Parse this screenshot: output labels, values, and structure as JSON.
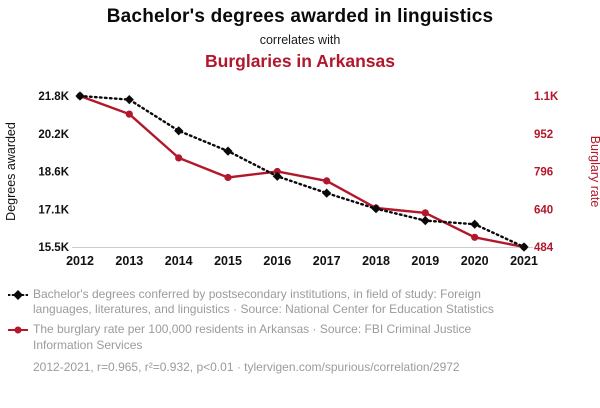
{
  "header": {
    "title": "Bachelor's degrees awarded in linguistics",
    "subtitle": "correlates with",
    "correlate": "Burglaries in Arkansas"
  },
  "chart_data": {
    "type": "line",
    "x": [
      "2012",
      "2013",
      "2014",
      "2015",
      "2016",
      "2017",
      "2018",
      "2019",
      "2020",
      "2021"
    ],
    "series": [
      {
        "id": "burglary-rate",
        "name": "Burglary rate in Arkansas",
        "axis": "right",
        "color": "#b2182b",
        "marker": "circle",
        "line_style": "solid",
        "values": [
          1108,
          1033,
          852,
          771,
          796,
          757,
          645,
          625,
          524,
          484
        ]
      },
      {
        "id": "degrees",
        "name": "Bachelor's degrees awarded in linguistics",
        "axis": "left",
        "color": "#0a0a0a",
        "marker": "diamond",
        "line_style": "dotted",
        "values": [
          21800,
          21650,
          20350,
          19500,
          18450,
          17750,
          17100,
          16600,
          16450,
          15500
        ]
      }
    ],
    "left_axis": {
      "label": "Degrees awarded",
      "min": 15500,
      "max": 21800,
      "ticks": [
        "21.8K",
        "20.2K",
        "18.6K",
        "17.1K",
        "15.5K"
      ]
    },
    "right_axis": {
      "label": "Burglary rate",
      "min": 484,
      "max": 1108,
      "ticks": [
        "1.1K",
        "952",
        "796",
        "640",
        "484"
      ]
    },
    "grid": false,
    "legend_position": "bottom"
  },
  "legend": {
    "items": [
      {
        "series": "degrees",
        "text": "Bachelor's degrees conferred by postsecondary institutions, in field of study: Foreign languages, literatures, and linguistics · Source: National Center for Education Statistics"
      },
      {
        "series": "burglary-rate",
        "text": "The burglary rate per 100,000 residents in Arkansas · Source: FBI Criminal Justice Information Services"
      }
    ],
    "footer": "2012-2021, r=0.965, r²=0.932, p<0.01 · tylervigen.com/spurious/correlation/2972"
  },
  "colors": {
    "accent": "#b2182b",
    "black": "#0a0a0a",
    "muted_text": "#9b9b9b",
    "axis_line": "#cccccc"
  }
}
